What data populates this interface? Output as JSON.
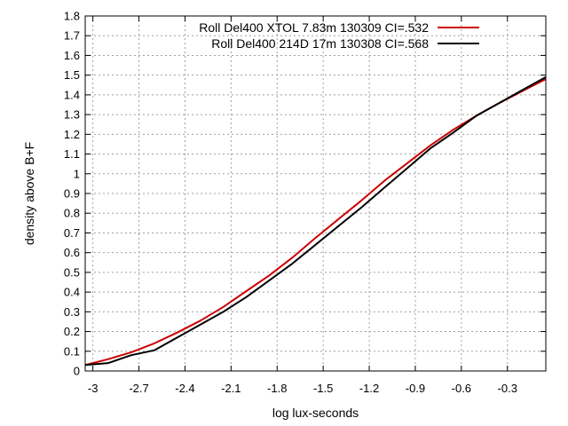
{
  "chart_data": {
    "type": "line",
    "title": "",
    "xlabel": "log lux-seconds",
    "ylabel": "density above B+F",
    "xlim": [
      -3.05,
      -0.05
    ],
    "ylim": [
      0,
      1.8
    ],
    "x_ticks": [
      -3,
      -2.7,
      -2.4,
      -2.1,
      -1.8,
      -1.5,
      -1.2,
      -0.9,
      -0.6,
      -0.3
    ],
    "x_tick_labels": [
      "-3",
      "-2.7",
      "-2.4",
      "-2.1",
      "-1.8",
      "-1.5",
      "-1.2",
      "-0.9",
      "-0.6",
      "-0.3"
    ],
    "y_ticks": [
      0,
      0.1,
      0.2,
      0.3,
      0.4,
      0.5,
      0.6,
      0.7,
      0.8,
      0.9,
      1,
      1.1,
      1.2,
      1.3,
      1.4,
      1.5,
      1.6,
      1.7,
      1.8
    ],
    "y_tick_labels": [
      "0",
      "0.1",
      "0.2",
      "0.3",
      "0.4",
      "0.5",
      "0.6",
      "0.7",
      "0.8",
      "0.9",
      "1",
      "1.1",
      "1.2",
      "1.3",
      "1.4",
      "1.5",
      "1.6",
      "1.7",
      "1.8"
    ],
    "grid": true,
    "legend_position": "top-right",
    "series": [
      {
        "name": "Roll Del400 XTOL 7.83m 130309 CI=.532",
        "color": "#cc0000",
        "x": [
          -3.05,
          -2.9,
          -2.75,
          -2.6,
          -2.45,
          -2.3,
          -2.15,
          -2.0,
          -1.85,
          -1.7,
          -1.55,
          -1.4,
          -1.25,
          -1.1,
          -0.95,
          -0.8,
          -0.65,
          -0.5,
          -0.35,
          -0.2,
          -0.05
        ],
        "y": [
          0.03,
          0.06,
          0.095,
          0.14,
          0.195,
          0.255,
          0.325,
          0.405,
          0.485,
          0.575,
          0.675,
          0.77,
          0.865,
          0.965,
          1.055,
          1.145,
          1.225,
          1.295,
          1.36,
          1.42,
          1.48
        ]
      },
      {
        "name": "Roll Del400 214D 17m 130308 CI=.568",
        "color": "#000000",
        "x": [
          -3.05,
          -2.9,
          -2.75,
          -2.6,
          -2.45,
          -2.3,
          -2.15,
          -2.0,
          -1.85,
          -1.7,
          -1.55,
          -1.4,
          -1.25,
          -1.1,
          -0.95,
          -0.8,
          -0.65,
          -0.5,
          -0.35,
          -0.2,
          -0.05
        ],
        "y": [
          0.03,
          0.04,
          0.08,
          0.105,
          0.17,
          0.235,
          0.3,
          0.375,
          0.46,
          0.545,
          0.64,
          0.735,
          0.83,
          0.93,
          1.03,
          1.13,
          1.21,
          1.295,
          1.36,
          1.425,
          1.49
        ]
      }
    ]
  }
}
